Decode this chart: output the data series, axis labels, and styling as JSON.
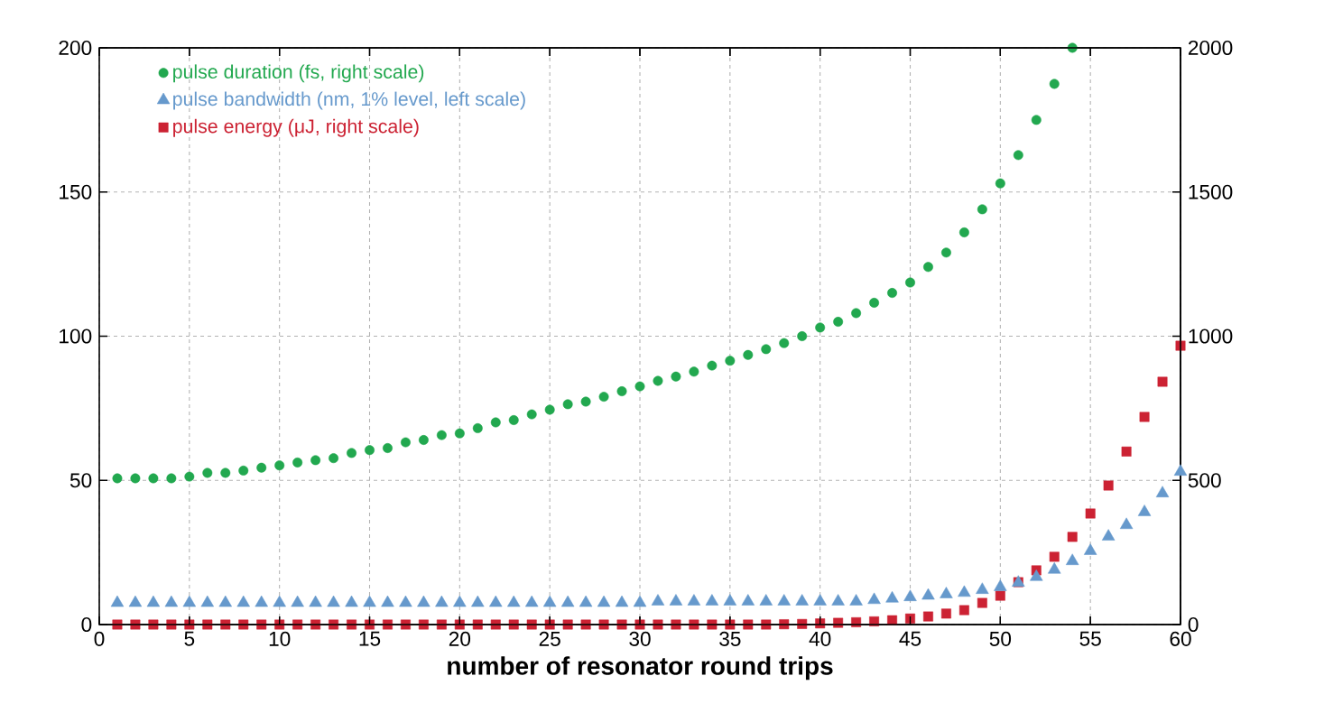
{
  "chart_data": {
    "type": "scatter",
    "xlabel": "number of resonator round trips",
    "x": [
      1,
      2,
      3,
      4,
      5,
      6,
      7,
      8,
      9,
      10,
      11,
      12,
      13,
      14,
      15,
      16,
      17,
      18,
      19,
      20,
      21,
      22,
      23,
      24,
      25,
      26,
      27,
      28,
      29,
      30,
      31,
      32,
      33,
      34,
      35,
      36,
      37,
      38,
      39,
      40,
      41,
      42,
      43,
      44,
      45,
      46,
      47,
      48,
      49,
      50,
      51,
      52,
      53,
      54,
      55,
      56,
      57,
      58,
      59,
      60
    ],
    "series": [
      {
        "name": "pulse duration (fs, right scale)",
        "color": "#22a84f",
        "marker": "circle",
        "axis": "y2",
        "values": [
          507,
          507,
          507,
          507,
          513,
          526,
          526,
          534,
          544,
          552,
          562,
          570,
          577,
          595,
          605,
          612,
          632,
          640,
          657,
          663,
          681,
          701,
          709,
          729,
          745,
          764,
          773,
          790,
          809,
          826,
          845,
          860,
          877,
          898,
          915,
          935,
          955,
          976,
          1000,
          1030,
          1050,
          1080,
          1116,
          1150,
          1186,
          1240,
          1290,
          1360,
          1440,
          1530,
          1628,
          1750,
          1875,
          2000,
          null,
          null,
          null,
          null,
          null,
          null
        ]
      },
      {
        "name": "pulse bandwidth (nm, 1% level, left scale)",
        "color": "#6699cc",
        "marker": "triangle",
        "values": [
          7.5,
          7.5,
          7.5,
          7.5,
          7.5,
          7.5,
          7.5,
          7.5,
          7.5,
          7.5,
          7.5,
          7.5,
          7.5,
          7.5,
          7.5,
          7.5,
          7.5,
          7.5,
          7.5,
          7.5,
          7.5,
          7.5,
          7.5,
          7.5,
          7.5,
          7.5,
          7.5,
          7.5,
          7.5,
          7.5,
          8,
          8,
          8,
          8,
          8,
          8,
          8,
          8,
          8,
          8,
          8,
          8,
          8.5,
          9,
          9.5,
          10,
          10.5,
          11,
          12,
          13,
          14.5,
          16.5,
          19,
          22,
          25.5,
          30.5,
          34.5,
          39,
          45.5,
          53
        ]
      },
      {
        "name": "pulse energy (μJ, right scale)",
        "color": "#cc2233",
        "marker": "square",
        "axis": "y2",
        "values": [
          0,
          0,
          0,
          0,
          0,
          0,
          0,
          0,
          0,
          0,
          0,
          0,
          0,
          0,
          0,
          0,
          0,
          0,
          0,
          0,
          0,
          0,
          0,
          0,
          0,
          0,
          0,
          0,
          0,
          0,
          0,
          0,
          0,
          0,
          0,
          0,
          0,
          1,
          2,
          4,
          6,
          8,
          11,
          15,
          21,
          28,
          38,
          50,
          75,
          100,
          147,
          188,
          235,
          304,
          385,
          482,
          600,
          720,
          842,
          967
        ]
      }
    ],
    "xlim": [
      0,
      60
    ],
    "xticks": [
      0,
      5,
      10,
      15,
      20,
      25,
      30,
      35,
      40,
      45,
      50,
      55,
      60
    ],
    "ylim": [
      0,
      200
    ],
    "yticks": [
      0,
      50,
      100,
      150,
      200
    ],
    "y2lim": [
      0,
      2000
    ],
    "y2ticks": [
      0,
      500,
      1000,
      1500,
      2000
    ],
    "grid": true,
    "legend": "top left"
  }
}
